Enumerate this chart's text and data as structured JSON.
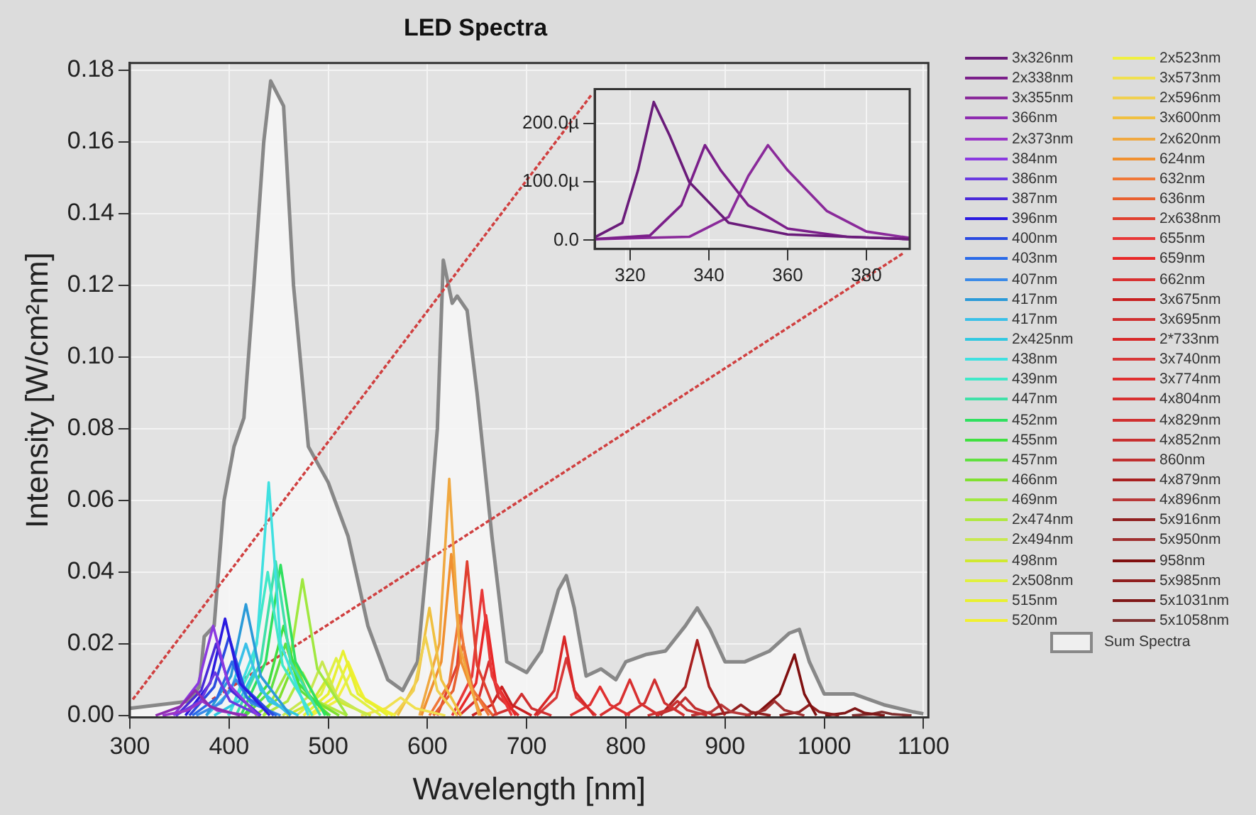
{
  "chart_data": [
    {
      "type": "line",
      "title": "LED Spectra",
      "xlabel": "Wavelength [nm]",
      "ylabel": "Intensity [W/cm²nm]",
      "xlim": [
        300,
        1105
      ],
      "ylim": [
        -0.0005,
        0.182
      ],
      "xticks": [
        300,
        400,
        500,
        600,
        700,
        800,
        900,
        1000,
        1100
      ],
      "yticks": [
        {
          "value": 0,
          "label": "0.00"
        },
        {
          "value": 0.02,
          "label": "0.02"
        },
        {
          "value": 0.04,
          "label": "0.04"
        },
        {
          "value": 0.06,
          "label": "0.06"
        },
        {
          "value": 0.08,
          "label": "0.08"
        },
        {
          "value": 0.1,
          "label": "0.10"
        },
        {
          "value": 0.12,
          "label": "0.12"
        },
        {
          "value": 0.14,
          "label": "0.14"
        },
        {
          "value": 0.16,
          "label": "0.16"
        },
        {
          "value": 0.18,
          "label": "0.18"
        }
      ],
      "grid": true,
      "legend": "right",
      "marker": "none",
      "series": [
        {
          "name": "366nm",
          "color": "#8e2bb0",
          "x": [
            326,
            351,
            366,
            381,
            411
          ],
          "values": [
            0,
            0.0025,
            0.007,
            0.0025,
            0
          ]
        },
        {
          "name": "2x373nm",
          "color": "#9a35c8",
          "x": [
            333,
            358,
            373,
            388,
            418
          ],
          "values": [
            0,
            0.0014,
            0.004,
            0.0014,
            0
          ]
        },
        {
          "name": "384nm",
          "color": "#8b3ae0",
          "x": [
            344,
            369,
            384,
            399,
            429
          ],
          "values": [
            0,
            0.009,
            0.025,
            0.009,
            0
          ]
        },
        {
          "name": "386nm",
          "color": "#6a3ae0",
          "x": [
            346,
            371,
            386,
            401,
            431
          ],
          "values": [
            0,
            0.004,
            0.012,
            0.004,
            0
          ]
        },
        {
          "name": "387nm",
          "color": "#4a2ad8",
          "x": [
            347,
            372,
            387,
            402,
            432
          ],
          "values": [
            0,
            0.007,
            0.02,
            0.007,
            0
          ]
        },
        {
          "name": "396nm",
          "color": "#2a1ae0",
          "x": [
            356,
            381,
            396,
            411,
            441
          ],
          "values": [
            0,
            0.009,
            0.027,
            0.009,
            0
          ]
        },
        {
          "name": "400nm",
          "color": "#2a4ae0",
          "x": [
            360,
            385,
            400,
            415,
            445
          ],
          "values": [
            0,
            0.008,
            0.022,
            0.008,
            0
          ]
        },
        {
          "name": "403nm",
          "color": "#2a6ae8",
          "x": [
            363,
            388,
            403,
            418,
            448
          ],
          "values": [
            0,
            0.005,
            0.015,
            0.005,
            0
          ]
        },
        {
          "name": "407nm",
          "color": "#3a8ae8",
          "x": [
            367,
            392,
            407,
            422,
            452
          ],
          "values": [
            0,
            0.0035,
            0.01,
            0.0035,
            0
          ]
        },
        {
          "name": "417nm",
          "color": "#2a9ad8",
          "x": [
            377,
            402,
            417,
            432,
            462
          ],
          "values": [
            0,
            0.011,
            0.031,
            0.011,
            0
          ]
        },
        {
          "name": "417nm",
          "color": "#3ac0e8",
          "x": [
            377,
            402,
            417,
            432,
            462
          ],
          "values": [
            0,
            0.007,
            0.02,
            0.007,
            0
          ]
        },
        {
          "name": "2x425nm",
          "color": "#30c8e0",
          "x": [
            385,
            410,
            425,
            440,
            470
          ],
          "values": [
            0,
            0.004,
            0.012,
            0.004,
            0
          ]
        },
        {
          "name": "438nm",
          "color": "#40e0e0",
          "x": [
            400,
            428,
            440,
            452,
            480
          ],
          "values": [
            0,
            0.02,
            0.065,
            0.02,
            0
          ]
        },
        {
          "name": "439nm",
          "color": "#40e8c8",
          "x": [
            399,
            424,
            439,
            454,
            484
          ],
          "values": [
            0,
            0.014,
            0.04,
            0.014,
            0
          ]
        },
        {
          "name": "447nm",
          "color": "#40e0a8",
          "x": [
            407,
            432,
            447,
            462,
            492
          ],
          "values": [
            0,
            0.015,
            0.043,
            0.015,
            0
          ]
        },
        {
          "name": "452nm",
          "color": "#30e060",
          "x": [
            412,
            437,
            452,
            467,
            497
          ],
          "values": [
            0,
            0.015,
            0.042,
            0.015,
            0
          ]
        },
        {
          "name": "455nm",
          "color": "#40e040",
          "x": [
            415,
            440,
            455,
            470,
            500
          ],
          "values": [
            0,
            0.009,
            0.025,
            0.009,
            0
          ]
        },
        {
          "name": "457nm",
          "color": "#60e040",
          "x": [
            417,
            442,
            457,
            472,
            502
          ],
          "values": [
            0,
            0.007,
            0.02,
            0.007,
            0
          ]
        },
        {
          "name": "466nm",
          "color": "#80e030",
          "x": [
            426,
            451,
            466,
            481,
            511
          ],
          "values": [
            0,
            0.005,
            0.015,
            0.005,
            0
          ]
        },
        {
          "name": "469nm",
          "color": "#a0e840",
          "x": [
            435,
            460,
            474,
            489,
            519
          ],
          "values": [
            0,
            0.013,
            0.038,
            0.013,
            0
          ]
        },
        {
          "name": "2x474nm",
          "color": "#b0e840",
          "x": [
            434,
            459,
            474,
            489,
            519
          ],
          "values": [
            0,
            0.004,
            0.012,
            0.004,
            0
          ]
        },
        {
          "name": "2x494nm",
          "color": "#c8e850",
          "x": [
            454,
            479,
            494,
            509,
            539
          ],
          "values": [
            0,
            0.005,
            0.015,
            0.005,
            0
          ]
        },
        {
          "name": "498nm",
          "color": "#d0e830",
          "x": [
            458,
            483,
            498,
            513,
            543
          ],
          "values": [
            0,
            0.0035,
            0.01,
            0.0035,
            0
          ]
        },
        {
          "name": "2x508nm",
          "color": "#e0f040",
          "x": [
            468,
            493,
            508,
            523,
            553
          ],
          "values": [
            0,
            0.006,
            0.016,
            0.006,
            0
          ]
        },
        {
          "name": "515nm",
          "color": "#e8f030",
          "x": [
            475,
            500,
            515,
            530,
            560
          ],
          "values": [
            0,
            0.006,
            0.018,
            0.006,
            0
          ]
        },
        {
          "name": "520nm",
          "color": "#f0f030",
          "x": [
            480,
            505,
            520,
            535,
            565
          ],
          "values": [
            0,
            0.005,
            0.015,
            0.005,
            0
          ]
        },
        {
          "name": "2x523nm",
          "color": "#f0f040",
          "x": [
            483,
            508,
            523,
            538,
            568
          ],
          "values": [
            0,
            0.004,
            0.012,
            0.004,
            0
          ]
        },
        {
          "name": "3x573nm",
          "color": "#f0e050",
          "x": [
            533,
            558,
            573,
            588,
            618
          ],
          "values": [
            0,
            0.002,
            0.005,
            0.002,
            0
          ]
        },
        {
          "name": "2x596nm",
          "color": "#f0d050",
          "x": [
            566,
            586,
            598,
            610,
            630
          ],
          "values": [
            0,
            0.007,
            0.022,
            0.007,
            0
          ]
        },
        {
          "name": "3x600nm",
          "color": "#f0c040",
          "x": [
            570,
            590,
            602,
            614,
            634
          ],
          "values": [
            0,
            0.01,
            0.03,
            0.01,
            0
          ]
        },
        {
          "name": "2x620nm",
          "color": "#f0a840",
          "x": [
            592,
            612,
            622,
            632,
            652
          ],
          "values": [
            0,
            0.02,
            0.066,
            0.02,
            0
          ]
        },
        {
          "name": "624nm",
          "color": "#f09030",
          "x": [
            594,
            614,
            624,
            634,
            654
          ],
          "values": [
            0,
            0.015,
            0.045,
            0.015,
            0
          ]
        },
        {
          "name": "632nm",
          "color": "#f07838",
          "x": [
            602,
            622,
            632,
            642,
            662
          ],
          "values": [
            0,
            0.009,
            0.028,
            0.009,
            0
          ]
        },
        {
          "name": "636nm",
          "color": "#e86030",
          "x": [
            606,
            626,
            636,
            646,
            666
          ],
          "values": [
            0,
            0.007,
            0.02,
            0.007,
            0
          ]
        },
        {
          "name": "2x638nm",
          "color": "#e04030",
          "x": [
            610,
            630,
            640,
            650,
            670
          ],
          "values": [
            0,
            0.014,
            0.043,
            0.014,
            0
          ]
        },
        {
          "name": "655nm",
          "color": "#e83838",
          "x": [
            625,
            645,
            655,
            665,
            685
          ],
          "values": [
            0,
            0.011,
            0.035,
            0.011,
            0
          ]
        },
        {
          "name": "659nm",
          "color": "#e82828",
          "x": [
            629,
            649,
            659,
            669,
            689
          ],
          "values": [
            0,
            0.009,
            0.028,
            0.009,
            0
          ]
        },
        {
          "name": "662nm",
          "color": "#d83030",
          "x": [
            632,
            652,
            662,
            672,
            692
          ],
          "values": [
            0,
            0.005,
            0.015,
            0.005,
            0
          ]
        },
        {
          "name": "3x675nm",
          "color": "#c82020",
          "x": [
            645,
            665,
            675,
            685,
            705
          ],
          "values": [
            0,
            0.003,
            0.008,
            0.003,
            0
          ]
        },
        {
          "name": "3x695nm",
          "color": "#d03030",
          "x": [
            665,
            685,
            695,
            705,
            725
          ],
          "values": [
            0,
            0.002,
            0.006,
            0.002,
            0
          ]
        },
        {
          "name": "2*733nm",
          "color": "#d82828",
          "x": [
            708,
            728,
            738,
            748,
            768
          ],
          "values": [
            0,
            0.007,
            0.022,
            0.007,
            0
          ]
        },
        {
          "name": "3x740nm",
          "color": "#d83838",
          "x": [
            710,
            730,
            740,
            750,
            770
          ],
          "values": [
            0,
            0.005,
            0.016,
            0.005,
            0
          ]
        },
        {
          "name": "3x774nm",
          "color": "#e03030",
          "x": [
            744,
            764,
            774,
            784,
            804
          ],
          "values": [
            0,
            0.003,
            0.008,
            0.003,
            0
          ]
        },
        {
          "name": "4x804nm",
          "color": "#d83030",
          "x": [
            774,
            794,
            804,
            814,
            834
          ],
          "values": [
            0,
            0.0035,
            0.01,
            0.0035,
            0
          ]
        },
        {
          "name": "4x829nm",
          "color": "#d03030",
          "x": [
            799,
            819,
            829,
            839,
            859
          ],
          "values": [
            0,
            0.0035,
            0.01,
            0.0035,
            0
          ]
        },
        {
          "name": "4x852nm",
          "color": "#c83030",
          "x": [
            822,
            842,
            852,
            862,
            882
          ],
          "values": [
            0,
            0.0015,
            0.004,
            0.0015,
            0
          ]
        },
        {
          "name": "860nm",
          "color": "#c03030",
          "x": [
            830,
            850,
            860,
            870,
            890
          ],
          "values": [
            0,
            0.002,
            0.005,
            0.002,
            0
          ]
        },
        {
          "name": "4x879nm",
          "color": "#a82020",
          "x": [
            835,
            860,
            872,
            884,
            900
          ],
          "values": [
            0,
            0.008,
            0.021,
            0.008,
            0
          ]
        },
        {
          "name": "4x896nm",
          "color": "#b83838",
          "x": [
            866,
            886,
            896,
            906,
            926
          ],
          "values": [
            0,
            0.001,
            0.003,
            0.001,
            0
          ]
        },
        {
          "name": "5x916nm",
          "color": "#902020",
          "x": [
            886,
            906,
            916,
            926,
            946
          ],
          "values": [
            0,
            0.001,
            0.003,
            0.001,
            0
          ]
        },
        {
          "name": "5x950nm",
          "color": "#a03030",
          "x": [
            920,
            940,
            950,
            960,
            980
          ],
          "values": [
            0,
            0.0015,
            0.004,
            0.0015,
            0
          ]
        },
        {
          "name": "958nm",
          "color": "#801010",
          "x": [
            930,
            955,
            970,
            980,
            992
          ],
          "values": [
            0,
            0.006,
            0.017,
            0.006,
            0
          ]
        },
        {
          "name": "5x985nm",
          "color": "#902020",
          "x": [
            955,
            975,
            985,
            995,
            1015
          ],
          "values": [
            0,
            0.001,
            0.003,
            0.001,
            0
          ]
        },
        {
          "name": "5x1031nm",
          "color": "#801818",
          "x": [
            1001,
            1021,
            1031,
            1041,
            1061
          ],
          "values": [
            0,
            0.0007,
            0.002,
            0.0007,
            0
          ]
        },
        {
          "name": "5x1058nm",
          "color": "#803030",
          "x": [
            1028,
            1048,
            1058,
            1068,
            1088
          ],
          "values": [
            0,
            0.0004,
            0.001,
            0.0004,
            0
          ]
        },
        {
          "type": "line",
          "color": "#d04040",
          "line_style": "dashed",
          "x": [
            303,
            765
          ],
          "values": [
            0.0045,
            0.173
          ]
        },
        {
          "type": "line",
          "color": "#d04040",
          "line_style": "dashed",
          "x": [
            383,
            1080
          ],
          "values": [
            0.0045,
            0.129
          ]
        },
        {
          "name": "Sum Spectra",
          "type": "area",
          "color": "#888888",
          "x": [
            300,
            360,
            370,
            375,
            385,
            395,
            405,
            415,
            425,
            435,
            442,
            455,
            465,
            480,
            500,
            520,
            540,
            560,
            575,
            590,
            600,
            610,
            616,
            625,
            630,
            640,
            650,
            665,
            680,
            700,
            715,
            732,
            740,
            748,
            760,
            775,
            790,
            800,
            820,
            840,
            860,
            872,
            885,
            900,
            920,
            945,
            965,
            975,
            985,
            1000,
            1030,
            1060,
            1090,
            1100
          ],
          "values": [
            0.002,
            0.004,
            0.008,
            0.022,
            0.025,
            0.06,
            0.075,
            0.083,
            0.12,
            0.16,
            0.177,
            0.17,
            0.12,
            0.075,
            0.065,
            0.05,
            0.025,
            0.01,
            0.007,
            0.015,
            0.045,
            0.08,
            0.127,
            0.115,
            0.117,
            0.113,
            0.09,
            0.05,
            0.015,
            0.012,
            0.018,
            0.035,
            0.039,
            0.03,
            0.011,
            0.013,
            0.01,
            0.015,
            0.017,
            0.018,
            0.025,
            0.03,
            0.024,
            0.015,
            0.015,
            0.018,
            0.023,
            0.024,
            0.015,
            0.006,
            0.006,
            0.003,
            0.001,
            0.0005
          ]
        }
      ]
    },
    {
      "type": "line",
      "xlim": [
        311,
        391
      ],
      "ylim": [
        -15,
        259
      ],
      "xticks": [
        320,
        340,
        360,
        380
      ],
      "yticks": [
        {
          "value": 0,
          "label": "0.0"
        },
        {
          "value": 100,
          "label": "100.0µ"
        },
        {
          "value": 200,
          "label": "200.0µ"
        }
      ],
      "grid": true,
      "legend": "right",
      "marker": "none",
      "series": [
        {
          "name": "3x326nm",
          "color": "#6a1b7a",
          "x": [
            311,
            318,
            322,
            326,
            330,
            335,
            345,
            360,
            391
          ],
          "values": [
            5,
            30,
            120,
            237,
            180,
            100,
            30,
            10,
            2
          ]
        },
        {
          "name": "2x338nm",
          "color": "#7b1f8a",
          "x": [
            311,
            325,
            333,
            339,
            343,
            350,
            360,
            375,
            391
          ],
          "values": [
            2,
            8,
            60,
            163,
            120,
            60,
            20,
            6,
            2
          ]
        },
        {
          "name": "3x355nm",
          "color": "#8a2a9a",
          "x": [
            311,
            335,
            345,
            350,
            355,
            360,
            370,
            380,
            391
          ],
          "values": [
            2,
            6,
            40,
            110,
            163,
            120,
            50,
            15,
            4
          ]
        }
      ]
    }
  ]
}
